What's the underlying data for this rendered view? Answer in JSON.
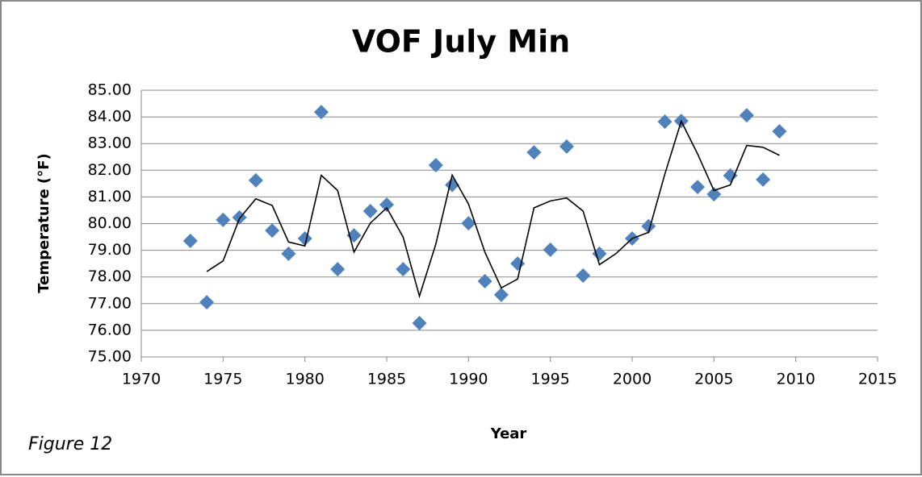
{
  "chart_data": {
    "type": "scatter",
    "title": "VOF July Min",
    "xlabel": "Year",
    "ylabel": "Temperature (°F)",
    "annotation": "Figure 12",
    "xlim": [
      1970,
      2015
    ],
    "xticks": [
      1970,
      1975,
      1980,
      1985,
      1990,
      1995,
      2000,
      2005,
      2010,
      2015
    ],
    "ylim": [
      75,
      85
    ],
    "yticks": [
      {
        "value": 75,
        "label": "75.00"
      },
      {
        "value": 76,
        "label": "76.00"
      },
      {
        "value": 77,
        "label": "77.00"
      },
      {
        "value": 78,
        "label": "78.00"
      },
      {
        "value": 79,
        "label": "79.00"
      },
      {
        "value": 80,
        "label": "80.00"
      },
      {
        "value": 81,
        "label": "81.00"
      },
      {
        "value": 82,
        "label": "82.00"
      },
      {
        "value": 83,
        "label": "83.00"
      },
      {
        "value": 84,
        "label": "84.00"
      },
      {
        "value": 85,
        "label": "85.00"
      }
    ],
    "grid": true,
    "series": [
      {
        "type": "scatter",
        "color": "#4f81bd",
        "x": [
          1973,
          1974,
          1975,
          1976,
          1977,
          1978,
          1979,
          1980,
          1981,
          1982,
          1983,
          1984,
          1985,
          1986,
          1987,
          1988,
          1989,
          1990,
          1991,
          1992,
          1993,
          1994,
          1995,
          1996,
          1997,
          1998,
          2000,
          2001,
          2002,
          2003,
          2004,
          2005,
          2006,
          2007,
          2008,
          2009
        ],
        "values": [
          79.35,
          77.05,
          80.14,
          80.23,
          81.62,
          79.74,
          78.87,
          79.44,
          84.18,
          78.29,
          79.56,
          80.47,
          80.71,
          78.29,
          76.27,
          82.19,
          81.45,
          80.01,
          77.84,
          77.33,
          78.5,
          82.67,
          79.02,
          82.89,
          78.05,
          78.87,
          79.44,
          79.9,
          83.82,
          83.85,
          81.37,
          81.1,
          81.8,
          84.06,
          81.65,
          83.46
        ]
      },
      {
        "type": "line",
        "color": "#000000",
        "x": [
          1974,
          1975,
          1976,
          1977,
          1978,
          1979,
          1980,
          1981,
          1982,
          1983,
          1984,
          1985,
          1986,
          1987,
          1988,
          1989,
          1990,
          1991,
          1992,
          1993,
          1994,
          1995,
          1996,
          1997,
          1998,
          1999,
          2000,
          2001,
          2002,
          2003,
          2004,
          2005,
          2006,
          2007,
          2008,
          2009
        ],
        "values": [
          78.2,
          78.6,
          80.19,
          80.93,
          80.68,
          79.31,
          79.16,
          81.81,
          81.24,
          78.93,
          80.02,
          80.59,
          79.5,
          77.28,
          79.23,
          81.82,
          80.73,
          78.93,
          77.59,
          77.92,
          80.59,
          80.85,
          80.96,
          80.47,
          78.46,
          78.87,
          79.44,
          79.67,
          81.86,
          83.84,
          82.61,
          81.24,
          81.45,
          82.93,
          82.86,
          82.56
        ]
      }
    ]
  }
}
